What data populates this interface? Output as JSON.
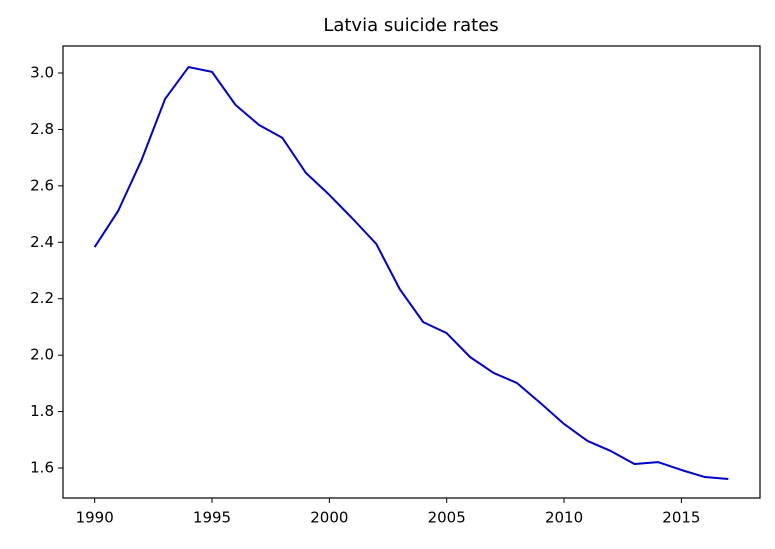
{
  "chart_data": {
    "type": "line",
    "title": "Latvia suicide rates",
    "x": [
      1990,
      1991,
      1992,
      1993,
      1994,
      1995,
      1996,
      1997,
      1998,
      1999,
      2000,
      2001,
      2002,
      2003,
      2004,
      2005,
      2006,
      2007,
      2008,
      2009,
      2010,
      2011,
      2012,
      2013,
      2014,
      2015,
      2016,
      2017
    ],
    "series": [
      {
        "name": "Latvia",
        "color": "#0000cd",
        "values": [
          2.383,
          2.511,
          2.692,
          2.908,
          3.021,
          3.004,
          2.887,
          2.816,
          2.77,
          2.646,
          2.568,
          2.483,
          2.394,
          2.234,
          2.117,
          2.078,
          1.993,
          1.937,
          1.901,
          1.83,
          1.756,
          1.696,
          1.66,
          1.614,
          1.621,
          1.593,
          1.568,
          1.561
        ]
      }
    ],
    "xlim": [
      1988.65,
      2018.35
    ],
    "xticks": [
      1990,
      1995,
      2000,
      2005,
      2010,
      2015
    ],
    "ylim": [
      1.4937,
      3.0957
    ],
    "yticks": [
      1.6,
      1.8,
      {
        "value": 2,
        "label": "2.0"
      },
      2.2,
      2.4,
      2.6,
      2.8,
      {
        "value": 3,
        "label": "3.0"
      }
    ],
    "grid": false
  }
}
